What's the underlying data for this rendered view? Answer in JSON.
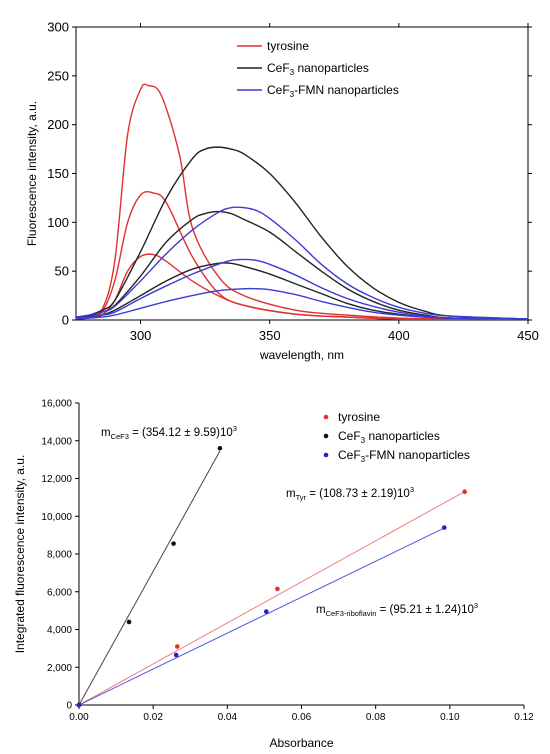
{
  "chart_data": [
    {
      "type": "line",
      "xlabel": "wavelength, nm",
      "ylabel": "Fluorescence intensity, a.u.",
      "xlim": [
        275,
        450
      ],
      "ylim": [
        0,
        300
      ],
      "xticks": [
        "300",
        "350",
        "400",
        "450"
      ],
      "yticks": [
        "0",
        "50",
        "100",
        "150",
        "200",
        "250",
        "300"
      ],
      "legend": {
        "placement": "top-right",
        "entries": [
          {
            "main": "tyrosine",
            "sub": "",
            "rest": "",
            "color": "#e03030"
          },
          {
            "main": "CeF",
            "sub": "3",
            "rest": " nanoparticles",
            "color": "#222222"
          },
          {
            "main": "CeF",
            "sub": "3",
            "rest": "-FMN nanoparticles",
            "color": "#3b3bd6"
          }
        ]
      },
      "series": [
        {
          "group": "tyrosine",
          "color": "#e03030",
          "x": [
            275,
            280,
            285,
            290,
            295,
            300,
            303,
            308,
            315,
            320,
            330,
            340,
            360,
            380,
            400,
            420,
            450
          ],
          "y": [
            2,
            4,
            10,
            60,
            190,
            236,
            240,
            230,
            170,
            95,
            45,
            25,
            10,
            5,
            2,
            1,
            0
          ]
        },
        {
          "group": "tyrosine",
          "color": "#e03030",
          "x": [
            275,
            280,
            285,
            290,
            295,
            300,
            305,
            310,
            320,
            330,
            340,
            360,
            380,
            400,
            420,
            450
          ],
          "y": [
            2,
            3,
            8,
            40,
            100,
            128,
            130,
            120,
            65,
            28,
            15,
            6,
            3,
            1,
            1,
            0
          ]
        },
        {
          "group": "tyrosine",
          "color": "#e03030",
          "x": [
            275,
            280,
            285,
            290,
            295,
            300,
            305,
            310,
            320,
            330,
            340,
            360,
            380,
            400,
            450
          ],
          "y": [
            1,
            2,
            5,
            20,
            50,
            65,
            67,
            60,
            40,
            25,
            15,
            6,
            3,
            1,
            0
          ]
        },
        {
          "group": "CeF3 nanoparticles",
          "color": "#222222",
          "x": [
            275,
            280,
            285,
            290,
            300,
            310,
            320,
            325,
            330,
            335,
            340,
            350,
            360,
            370,
            380,
            390,
            400,
            410,
            420,
            450
          ],
          "y": [
            3,
            5,
            10,
            20,
            70,
            125,
            165,
            175,
            177,
            175,
            170,
            150,
            120,
            85,
            55,
            33,
            18,
            9,
            4,
            1
          ]
        },
        {
          "group": "CeF3 nanoparticles",
          "color": "#222222",
          "x": [
            275,
            280,
            285,
            290,
            300,
            310,
            320,
            325,
            330,
            335,
            340,
            350,
            360,
            370,
            380,
            390,
            400,
            410,
            420,
            450
          ],
          "y": [
            2,
            4,
            8,
            15,
            45,
            80,
            103,
            109,
            111,
            109,
            103,
            90,
            70,
            50,
            32,
            19,
            10,
            5,
            2,
            1
          ]
        },
        {
          "group": "CeF3 nanoparticles",
          "color": "#222222",
          "x": [
            275,
            280,
            285,
            290,
            300,
            310,
            320,
            330,
            335,
            340,
            350,
            360,
            370,
            380,
            390,
            400,
            410,
            420,
            450
          ],
          "y": [
            2,
            3,
            5,
            10,
            25,
            40,
            52,
            58,
            58,
            55,
            47,
            37,
            27,
            17,
            10,
            6,
            3,
            2,
            1
          ]
        },
        {
          "group": "CeF3-FMN nanoparticles",
          "color": "#3b3bd6",
          "x": [
            275,
            280,
            285,
            290,
            300,
            310,
            320,
            330,
            335,
            340,
            345,
            350,
            360,
            370,
            380,
            390,
            400,
            410,
            420,
            450
          ],
          "y": [
            3,
            5,
            8,
            14,
            40,
            68,
            92,
            110,
            115,
            115,
            112,
            104,
            82,
            57,
            37,
            23,
            13,
            7,
            4,
            1
          ]
        },
        {
          "group": "CeF3-FMN nanoparticles",
          "color": "#3b3bd6",
          "x": [
            275,
            280,
            285,
            290,
            300,
            310,
            320,
            330,
            335,
            340,
            345,
            350,
            360,
            370,
            380,
            390,
            400,
            410,
            420,
            450
          ],
          "y": [
            2,
            3,
            5,
            8,
            22,
            35,
            47,
            57,
            61,
            62,
            61,
            57,
            46,
            33,
            22,
            14,
            8,
            4,
            2,
            1
          ]
        },
        {
          "group": "CeF3-FMN nanoparticles",
          "color": "#3b3bd6",
          "x": [
            275,
            280,
            285,
            290,
            300,
            310,
            320,
            330,
            340,
            345,
            350,
            360,
            370,
            380,
            390,
            400,
            410,
            420,
            450
          ],
          "y": [
            1,
            2,
            3,
            5,
            12,
            19,
            25,
            30,
            32,
            32,
            31,
            26,
            19,
            13,
            8,
            5,
            3,
            2,
            1
          ]
        }
      ]
    },
    {
      "type": "scatter",
      "xlabel": "Absorbance",
      "ylabel": "Integrated fluorescence intensity, a.u.",
      "xlim": [
        0,
        0.12
      ],
      "ylim": [
        0,
        16000
      ],
      "xticks": [
        "0.00",
        "0.02",
        "0.04",
        "0.06",
        "0.08",
        "0.10",
        "0.12"
      ],
      "yticks": [
        "0",
        "2,000",
        "4,000",
        "6,000",
        "8,000",
        "10,000",
        "12,000",
        "14,000",
        "16,000"
      ],
      "legend": {
        "placement": "top-right",
        "entries": [
          {
            "main": "tyrosine",
            "sub": "",
            "rest": "",
            "color": "#e03030"
          },
          {
            "main": "CeF",
            "sub": "3",
            "rest": " nanoparticles",
            "color": "#111111"
          },
          {
            "main": "CeF",
            "sub": "3",
            "rest": "-FMN nanoparticles",
            "color": "#2222cc"
          }
        ]
      },
      "series": [
        {
          "name": "tyrosine",
          "color": "#e03030",
          "line_color": "#f08080",
          "x": [
            0,
            0.0265,
            0.0535,
            0.104
          ],
          "y": [
            0,
            3100,
            6150,
            11300
          ],
          "fit_slope": 108730
        },
        {
          "name": "CeF3 nanoparticles",
          "color": "#111111",
          "line_color": "#444444",
          "x": [
            0,
            0.0135,
            0.0255,
            0.038
          ],
          "y": [
            0,
            4400,
            8550,
            13600
          ],
          "fit_slope": 354120
        },
        {
          "name": "CeF3-FMN nanoparticles",
          "color": "#2222cc",
          "line_color": "#5555dd",
          "x": [
            0,
            0.0262,
            0.0505,
            0.0985
          ],
          "y": [
            0,
            2650,
            4950,
            9400
          ],
          "fit_slope": 95210
        }
      ],
      "annotations": [
        {
          "id": "ann-cef3",
          "main": "m",
          "sub": "CeF3",
          "rest": " = (354.12 ± 9.59)10",
          "sup": "3"
        },
        {
          "id": "ann-tyr",
          "main": "m",
          "sub": "Tyr",
          "rest": " = (108.73 ± 2.19)10",
          "sup": "3"
        },
        {
          "id": "ann-fmn",
          "main": "m",
          "sub": "CeF3-riboflavin",
          "rest": " = (95.21 ± 1.24)10",
          "sup": "3"
        }
      ]
    }
  ]
}
